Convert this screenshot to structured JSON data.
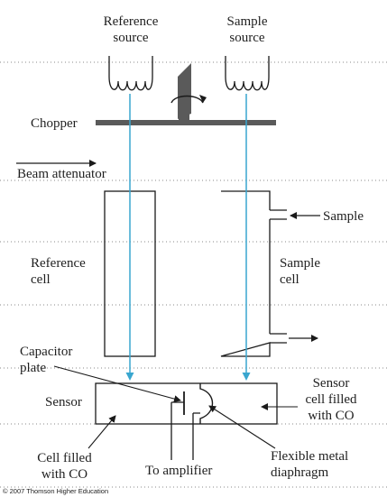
{
  "labels": {
    "reference_source": [
      "Reference",
      "source"
    ],
    "sample_source": [
      "Sample",
      "source"
    ],
    "chopper": "Chopper",
    "beam_attenuator": "Beam attenuator",
    "sample_inlet": "Sample",
    "reference_cell": [
      "Reference",
      "cell"
    ],
    "sample_cell": [
      "Sample",
      "cell"
    ],
    "capacitor_plate": [
      "Capacitor",
      "plate"
    ],
    "sensor": "Sensor",
    "sensor_cell": [
      "Sensor",
      "cell filled",
      "with CO"
    ],
    "cell_filled": [
      "Cell filled",
      "with CO"
    ],
    "amplifier": "To amplifier",
    "diaphragm": [
      "Flexible metal",
      "diaphragm"
    ]
  },
  "copyright": "© 2007 Thomson Higher Education",
  "colors": {
    "beam": "#39a6cf",
    "line": "#1a1a1a",
    "chopper": "#555555",
    "dotted": "#8a8a8a"
  }
}
